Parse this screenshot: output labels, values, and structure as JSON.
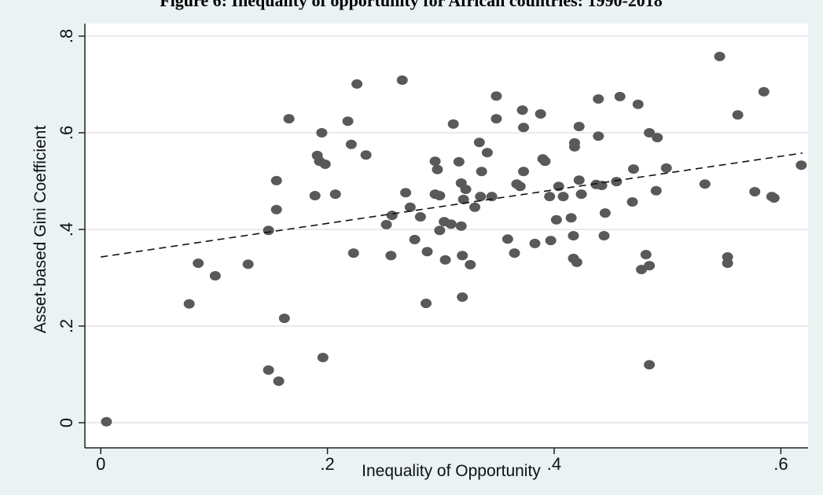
{
  "chart_data": {
    "type": "scatter",
    "title": "Figure 6: Inequality of opportunity for African countries: 1990-2018",
    "x_label": "Inequality of Opportunity",
    "y_label": "Asset-based Gini Coefficient",
    "color": "#595959",
    "grid": true,
    "xlim": [
      -0.014,
      0.624
    ],
    "ylim": [
      -0.052,
      0.826
    ],
    "xticks": [
      0,
      {
        "value": 0.2,
        "label": ".2"
      },
      {
        "value": 0.4,
        "label": ".4"
      },
      {
        "value": 0.6,
        "label": ".6"
      }
    ],
    "yticks": [
      0,
      {
        "value": 0.2,
        "label": ".2"
      },
      {
        "value": 0.4,
        "label": ".4"
      },
      {
        "value": 0.6,
        "label": ".6"
      },
      {
        "value": 0.8,
        "label": ".8"
      }
    ],
    "x": [
      0.005,
      0.078,
      0.086,
      0.101,
      0.13,
      0.148,
      0.148,
      0.155,
      0.155,
      0.157,
      0.162,
      0.166,
      0.189,
      0.191,
      0.193,
      0.195,
      0.198,
      0.196,
      0.207,
      0.218,
      0.221,
      0.223,
      0.226,
      0.234,
      0.252,
      0.256,
      0.257,
      0.266,
      0.269,
      0.273,
      0.277,
      0.282,
      0.287,
      0.288,
      0.295,
      0.297,
      0.295,
      0.299,
      0.299,
      0.304,
      0.303,
      0.309,
      0.311,
      0.316,
      0.318,
      0.318,
      0.319,
      0.319,
      0.32,
      0.322,
      0.326,
      0.33,
      0.334,
      0.335,
      0.336,
      0.341,
      0.345,
      0.349,
      0.349,
      0.359,
      0.365,
      0.367,
      0.37,
      0.372,
      0.373,
      0.373,
      0.383,
      0.388,
      0.39,
      0.392,
      0.396,
      0.397,
      0.402,
      0.404,
      0.408,
      0.415,
      0.417,
      0.418,
      0.418,
      0.417,
      0.42,
      0.422,
      0.422,
      0.424,
      0.437,
      0.439,
      0.439,
      0.442,
      0.444,
      0.445,
      0.455,
      0.458,
      0.469,
      0.47,
      0.474,
      0.477,
      0.481,
      0.484,
      0.484,
      0.484,
      0.49,
      0.491,
      0.499,
      0.533,
      0.546,
      0.553,
      0.553,
      0.562,
      0.577,
      0.585,
      0.592,
      0.594,
      0.618
    ],
    "values": [
      0.002,
      0.246,
      0.33,
      0.304,
      0.328,
      0.398,
      0.109,
      0.441,
      0.501,
      0.086,
      0.216,
      0.629,
      0.47,
      0.553,
      0.541,
      0.6,
      0.535,
      0.135,
      0.473,
      0.624,
      0.576,
      0.351,
      0.701,
      0.554,
      0.41,
      0.346,
      0.429,
      0.709,
      0.476,
      0.446,
      0.379,
      0.426,
      0.247,
      0.354,
      0.541,
      0.524,
      0.473,
      0.47,
      0.398,
      0.337,
      0.416,
      0.411,
      0.618,
      0.54,
      0.407,
      0.496,
      0.26,
      0.346,
      0.462,
      0.483,
      0.327,
      0.446,
      0.58,
      0.468,
      0.52,
      0.559,
      0.468,
      0.676,
      0.629,
      0.38,
      0.351,
      0.494,
      0.489,
      0.647,
      0.611,
      0.52,
      0.371,
      0.639,
      0.546,
      0.541,
      0.468,
      0.377,
      0.42,
      0.489,
      0.468,
      0.424,
      0.34,
      0.579,
      0.571,
      0.387,
      0.332,
      0.502,
      0.613,
      0.473,
      0.493,
      0.67,
      0.593,
      0.491,
      0.387,
      0.434,
      0.499,
      0.675,
      0.457,
      0.525,
      0.659,
      0.317,
      0.348,
      0.6,
      0.325,
      0.12,
      0.48,
      0.59,
      0.527,
      0.494,
      0.758,
      0.33,
      0.343,
      0.637,
      0.478,
      0.685,
      0.468,
      0.465,
      0.533
    ],
    "fit_line": {
      "x": [
        0,
        0.619
      ],
      "y": [
        0.343,
        0.558
      ]
    }
  }
}
